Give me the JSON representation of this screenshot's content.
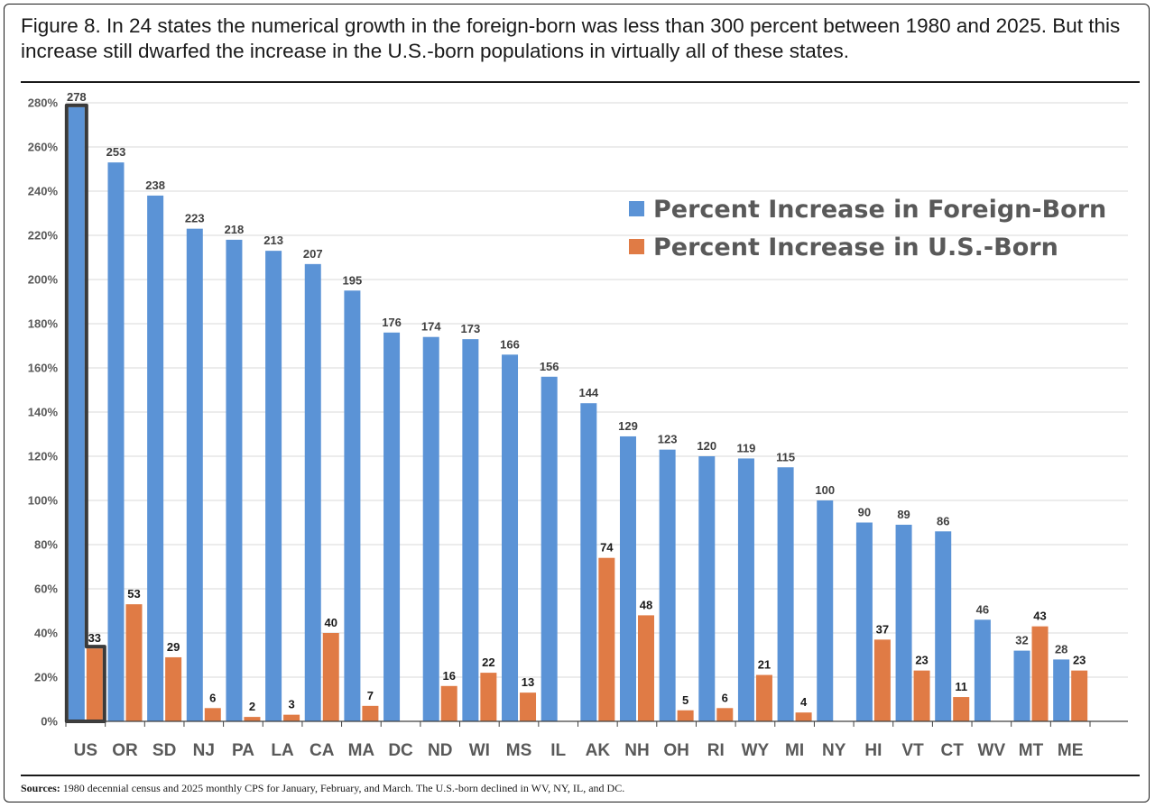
{
  "figure": {
    "title": "Figure 8. In 24 states the numerical growth in the foreign-born was less than 300 percent between 1980 and 2025. But this increase still dwarfed the increase in the U.S.-born populations in virtually all of these states.",
    "sources_label": "Sources:",
    "sources_text": " 1980 decennial census and 2025 monthly CPS for January, February, and March. The U.S.-born declined in WV, NY, IL, and DC."
  },
  "chart_data": {
    "type": "bar",
    "categories": [
      "US",
      "OR",
      "SD",
      "NJ",
      "PA",
      "LA",
      "CA",
      "MA",
      "DC",
      "ND",
      "WI",
      "MS",
      "IL",
      "AK",
      "NH",
      "OH",
      "RI",
      "WY",
      "MI",
      "NY",
      "HI",
      "VT",
      "CT",
      "WV",
      "MT",
      "ME"
    ],
    "series": [
      {
        "name": "Percent Increase in Foreign-Born",
        "color": "#5b93d6",
        "values": [
          278,
          253,
          238,
          223,
          218,
          213,
          207,
          195,
          176,
          174,
          173,
          166,
          156,
          144,
          129,
          123,
          120,
          119,
          115,
          100,
          90,
          89,
          86,
          46,
          32,
          28
        ],
        "labels": [
          "278",
          "253",
          "238",
          "223",
          "218",
          "213",
          "207",
          "195",
          "176",
          "174",
          "173",
          "166",
          "156",
          "144",
          "129",
          "123",
          "120",
          "119",
          "115",
          "100",
          "90",
          "89",
          "86",
          "46",
          "32",
          "28"
        ]
      },
      {
        "name": "Percent Increase in U.S.-Born",
        "color": "#e07b45",
        "values": [
          33,
          53,
          29,
          6,
          2,
          3,
          40,
          7,
          null,
          16,
          22,
          13,
          null,
          74,
          48,
          5,
          6,
          21,
          4,
          null,
          37,
          23,
          11,
          null,
          43,
          23
        ],
        "labels": [
          "33",
          "53",
          "29",
          "6",
          "2",
          "3",
          "40",
          "7",
          "",
          "16",
          "22",
          "13",
          "",
          "74",
          "48",
          "5",
          "6",
          "21",
          "4",
          "",
          "37",
          "23",
          "11",
          "",
          "43",
          "23"
        ]
      }
    ],
    "ylim": [
      0,
      280
    ],
    "yticks": [
      "0%",
      "20%",
      "40%",
      "60%",
      "80%",
      "100%",
      "120%",
      "140%",
      "160%",
      "180%",
      "200%",
      "220%",
      "240%",
      "260%",
      "280%"
    ],
    "ytick_values": [
      0,
      20,
      40,
      60,
      80,
      100,
      120,
      140,
      160,
      180,
      200,
      220,
      240,
      260,
      280
    ],
    "xlabel": "",
    "ylabel": "",
    "grid": true,
    "legend_position": "top-right",
    "highlighted_category": "US"
  }
}
